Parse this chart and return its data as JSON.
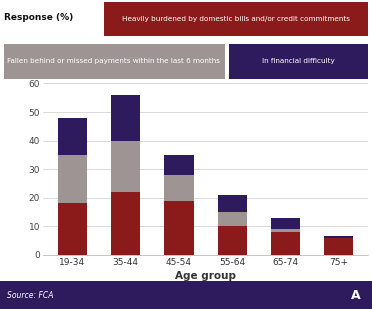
{
  "categories": [
    "19-34",
    "35-44",
    "45-54",
    "55-64",
    "65-74",
    "75+"
  ],
  "heavily_burdened": [
    18,
    22,
    19,
    10,
    8,
    6
  ],
  "fallen_behind": [
    17,
    18,
    9,
    5,
    1,
    0
  ],
  "financial_difficulty": [
    13,
    16,
    7,
    6,
    4,
    0.5
  ],
  "color_heavily": "#8B1A1A",
  "color_fallen": "#9E9494",
  "color_financial": "#2D1B5E",
  "background_color": "#ffffff",
  "footer_bg": "#2D1B5E",
  "xlabel": "Age group",
  "ylabel": "Response (%)",
  "ylim": [
    0,
    60
  ],
  "yticks": [
    0,
    10,
    20,
    30,
    40,
    50,
    60
  ],
  "legend_heavily": "Heavily burdened by domestic bills and/or credit commitments",
  "legend_fallen": "Fallen behind or missed payments within the last 6 months",
  "legend_financial": "In financial difficulty",
  "source_text": "Source: FCA",
  "bar_width": 0.55
}
